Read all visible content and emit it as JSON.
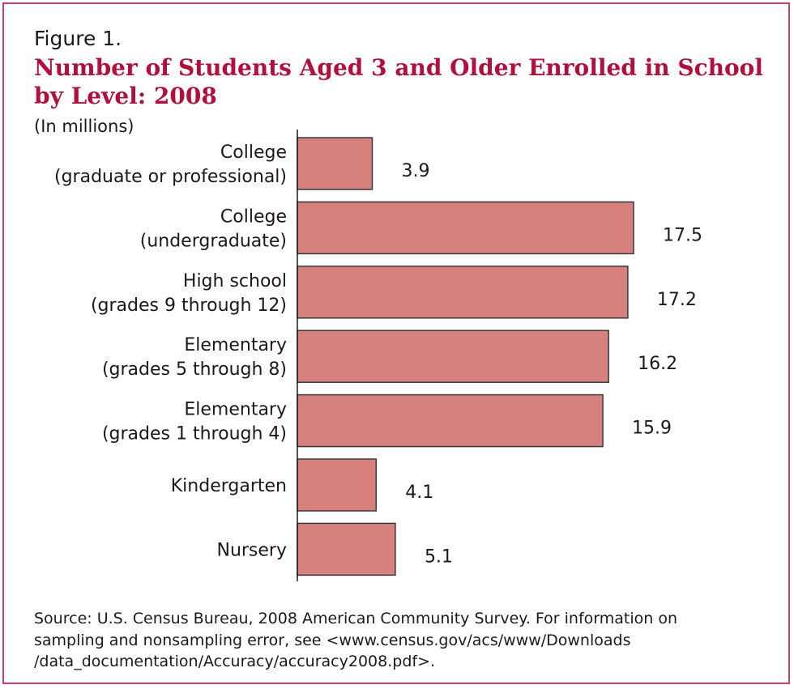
{
  "figure_label": "Figure 1.",
  "title": "Number of Students Aged 3 and Older Enrolled in School by Level: 2008",
  "units": "(In millions)",
  "source": "Source: U.S. Census Bureau, 2008 American Community Survey. For information on sampling and nonsampling error, see <www.census.gov/acs/www/Downloads /data_documentation/Accuracy/accuracy2008.pdf>.",
  "colors": {
    "bar": "#d6817e",
    "bar_outline": "#3a3a3a",
    "title": "#b0103c",
    "frame": "#c9406e"
  },
  "chart_data": {
    "type": "bar",
    "orientation": "horizontal",
    "title": "Number of Students Aged 3 and Older Enrolled in School by Level: 2008",
    "subtitle": "(In millions)",
    "xlabel": "",
    "ylabel": "",
    "categories": [
      [
        "College",
        "(graduate or professional)"
      ],
      [
        "College",
        "(undergraduate)"
      ],
      [
        "High school",
        "(grades 9 through 12)"
      ],
      [
        "Elementary",
        "(grades 5 through 8)"
      ],
      [
        "Elementary",
        "(grades 1 through 4)"
      ],
      [
        "Kindergarten"
      ],
      [
        "Nursery"
      ]
    ],
    "values": [
      3.9,
      17.5,
      17.2,
      16.2,
      15.9,
      4.1,
      5.1
    ],
    "value_labels": [
      "3.9",
      "17.5",
      "17.2",
      "16.2",
      "15.9",
      "4.1",
      "5.1"
    ],
    "xlim": [
      0,
      17.5
    ],
    "grid": false,
    "legend": "none"
  }
}
